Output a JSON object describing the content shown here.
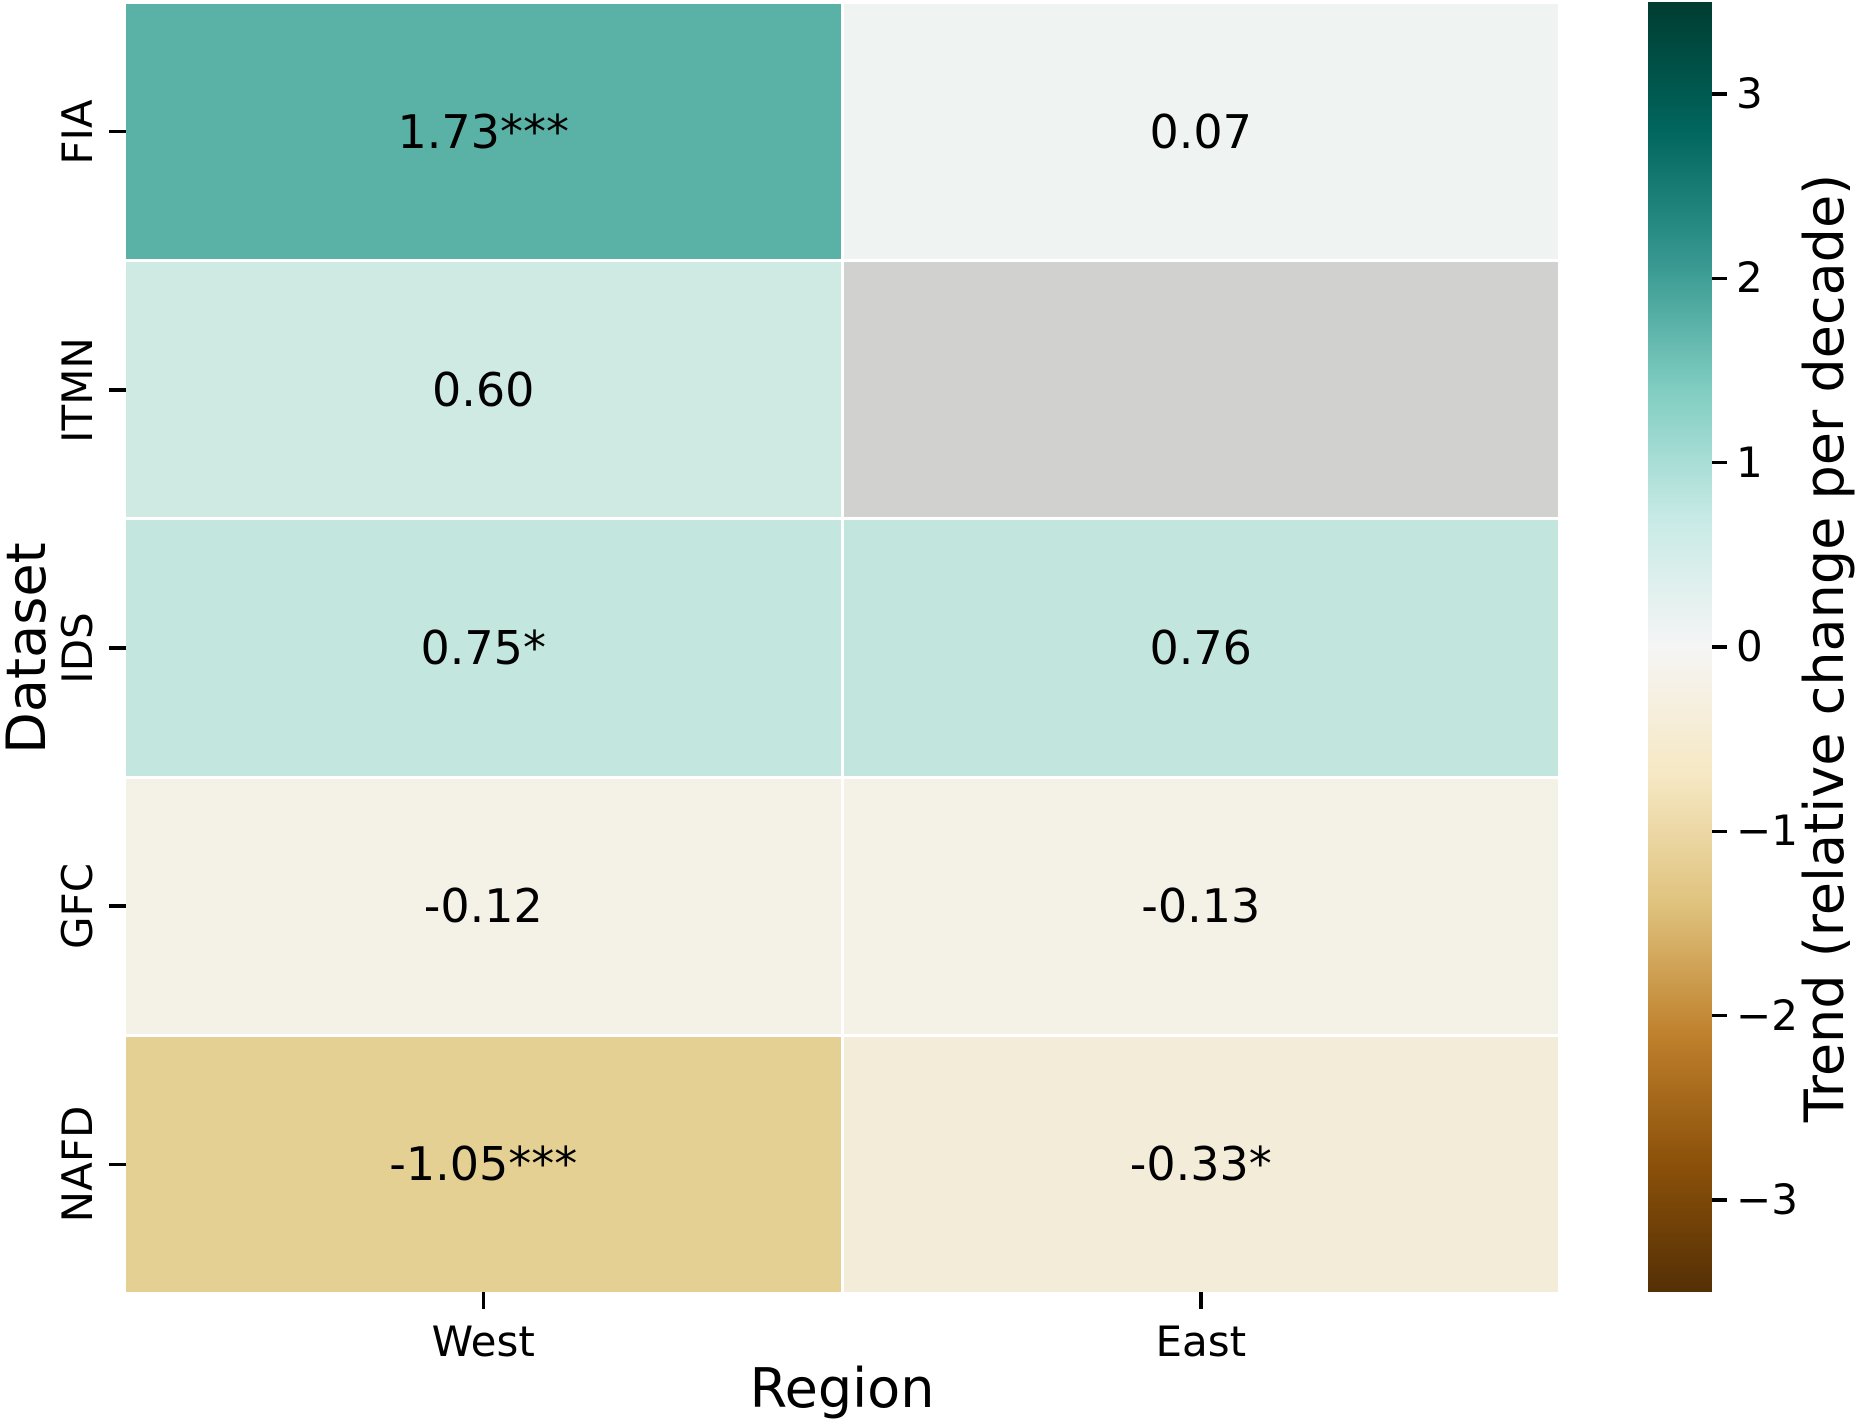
{
  "chart_data": {
    "type": "heatmap",
    "title": "",
    "xlabel": "Region",
    "ylabel": "Dataset",
    "columns": [
      "West",
      "East"
    ],
    "rows": [
      "FIA",
      "ITMN",
      "IDS",
      "GFC",
      "NAFD"
    ],
    "values": [
      [
        1.73,
        0.07
      ],
      [
        0.6,
        null
      ],
      [
        0.75,
        0.76
      ],
      [
        -0.12,
        -0.13
      ],
      [
        -1.05,
        -0.33
      ]
    ],
    "annotations": [
      [
        "1.73***",
        "0.07"
      ],
      [
        "0.60",
        ""
      ],
      [
        "0.75*",
        "0.76"
      ],
      [
        "-0.12",
        "-0.13"
      ],
      [
        "-1.05***",
        "-0.33*"
      ]
    ],
    "cell_colors": [
      [
        "#5ab2a7",
        "#eff3f1"
      ],
      [
        "#cfeae3",
        "#d1d1d0"
      ],
      [
        "#c3e6df",
        "#c2e5de"
      ],
      [
        "#f4f1e7",
        "#f4f1e6"
      ],
      [
        "#e5d094",
        "#f3ecd8"
      ]
    ],
    "missing_value_color": "#d1d1d0",
    "colormap": "BrBG",
    "colorbar": {
      "label": "Trend (relative change per decade)",
      "vmin": -3.5,
      "vmax": 3.5,
      "ticks": [
        3,
        2,
        1,
        0,
        -1,
        -2,
        -3
      ],
      "tick_labels": [
        "3",
        "2",
        "1",
        "0",
        "−1",
        "−2",
        "−3"
      ],
      "gradient_stops": [
        "#543005",
        "#8c510a",
        "#bf812d",
        "#dfc27d",
        "#f6e8c3",
        "#f5f5f5",
        "#c7eae5",
        "#80cdc1",
        "#35978f",
        "#01665e",
        "#003c30"
      ]
    }
  }
}
